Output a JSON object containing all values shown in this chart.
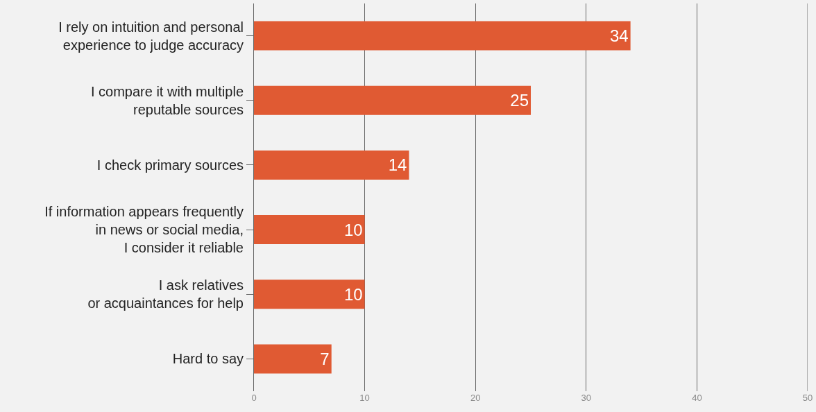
{
  "chart_data": {
    "type": "bar",
    "orientation": "horizontal",
    "categories": [
      "I rely on intuition and personal\nexperience to judge accuracy",
      "I compare it with multiple\nreputable sources",
      "I check primary sources",
      "If information appears frequently\nin news or social media,\nI consider it reliable",
      "I ask relatives\nor acquaintances for help",
      "Hard to say"
    ],
    "values": [
      34,
      25,
      14,
      10,
      10,
      7
    ],
    "color": "#e05a33",
    "xlim": [
      0,
      50
    ],
    "xticks": [
      0,
      10,
      20,
      30,
      40,
      50
    ],
    "grid": "x",
    "data_labels": true
  }
}
